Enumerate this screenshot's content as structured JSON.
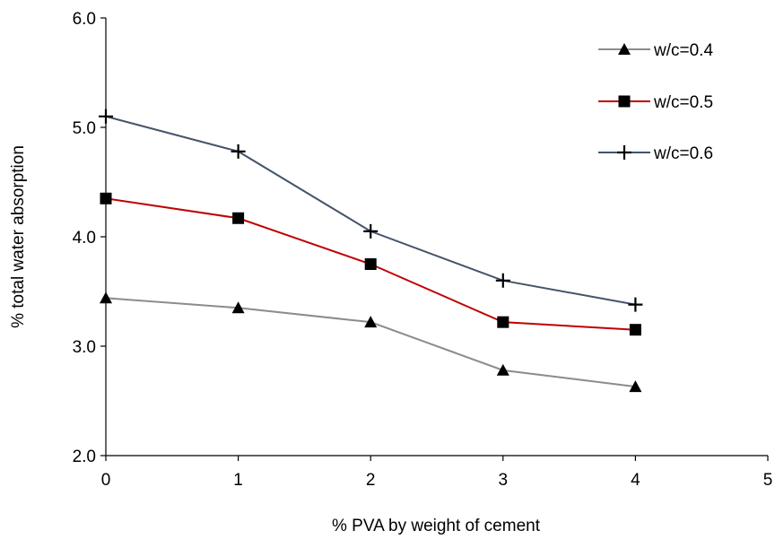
{
  "chart_data": {
    "type": "line",
    "title": "",
    "xlabel": "% PVA by weight of cement",
    "ylabel": "% total water absorption",
    "xlim": [
      0,
      5
    ],
    "ylim": [
      2.0,
      6.0
    ],
    "x_ticks": [
      0,
      1,
      2,
      3,
      4,
      5
    ],
    "y_ticks": [
      2.0,
      3.0,
      4.0,
      5.0,
      6.0
    ],
    "x_tick_labels": [
      "0",
      "1",
      "2",
      "3",
      "4",
      "5"
    ],
    "y_tick_labels": [
      "2.0",
      "3.0",
      "4.0",
      "5.0",
      "6.0"
    ],
    "grid": false,
    "legend_position": "top-right",
    "series": [
      {
        "name": "w/c=0.4",
        "marker": "triangle",
        "color": "#8c8c8c",
        "x": [
          0,
          1,
          2,
          3,
          4
        ],
        "values": [
          3.44,
          3.35,
          3.22,
          2.78,
          2.63
        ]
      },
      {
        "name": "w/c=0.5",
        "marker": "square",
        "color": "#c00000",
        "x": [
          0,
          1,
          2,
          3,
          4
        ],
        "values": [
          4.35,
          4.17,
          3.75,
          3.22,
          3.15
        ]
      },
      {
        "name": "w/c=0.6",
        "marker": "plus",
        "color": "#44546a",
        "x": [
          0,
          1,
          2,
          3,
          4
        ],
        "values": [
          5.1,
          4.78,
          4.05,
          3.6,
          3.38
        ]
      }
    ]
  }
}
